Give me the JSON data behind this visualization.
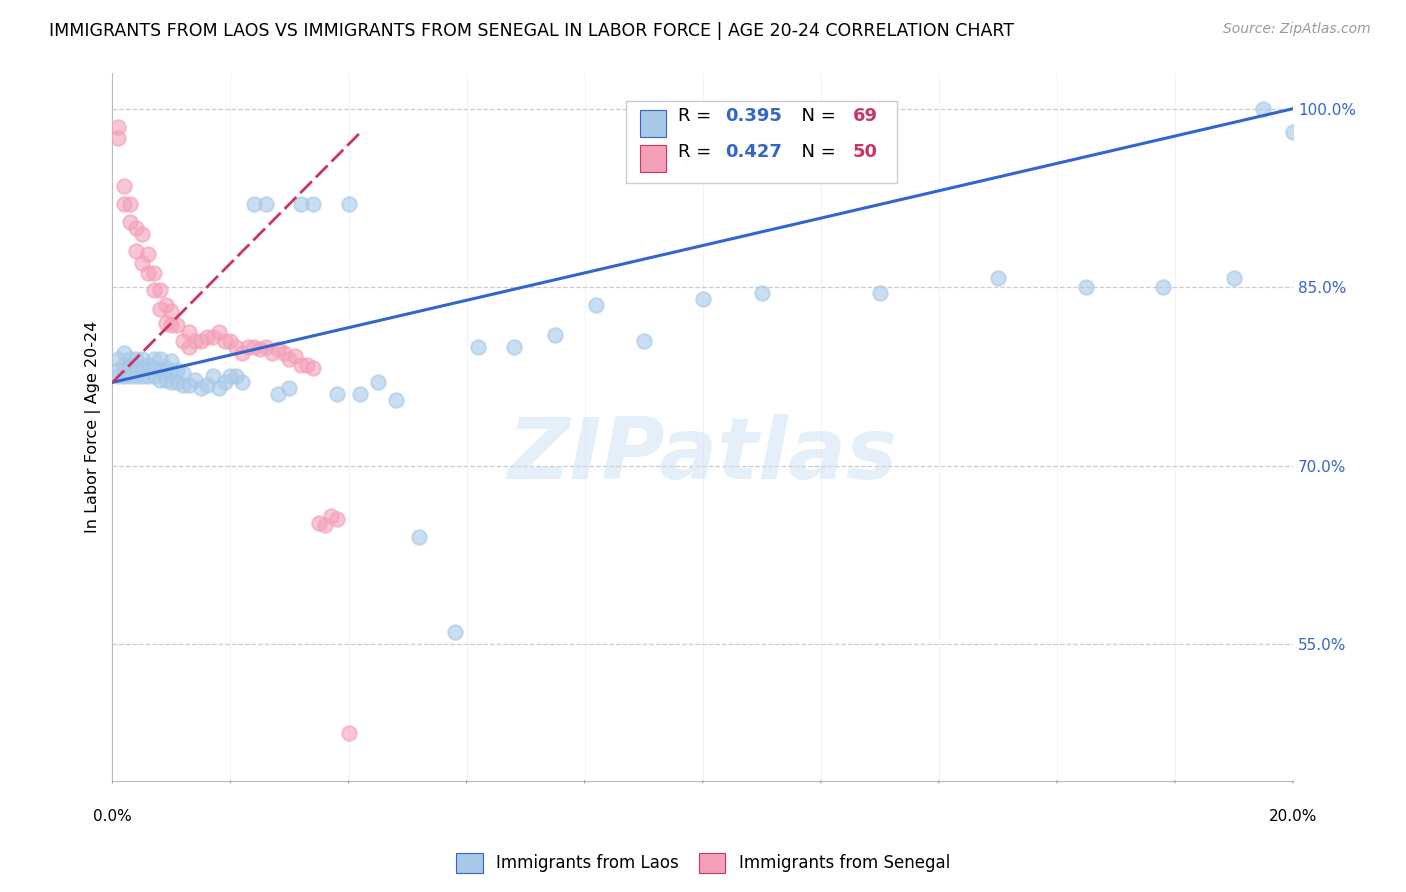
{
  "title": "IMMIGRANTS FROM LAOS VS IMMIGRANTS FROM SENEGAL IN LABOR FORCE | AGE 20-24 CORRELATION CHART",
  "source": "Source: ZipAtlas.com",
  "ylabel": "In Labor Force | Age 20-24",
  "xmin": 0.0,
  "xmax": 0.2,
  "ymin": 0.435,
  "ymax": 1.03,
  "laos_color": "#a8c8e8",
  "senegal_color": "#f4a0b8",
  "laos_line_color": "#3366cc",
  "senegal_line_color": "#cc3366",
  "blue_text_color": "#3366cc",
  "pink_text_color": "#cc3366",
  "legend_label_laos": "Immigrants from Laos",
  "legend_label_senegal": "Immigrants from Senegal",
  "watermark_text": "ZIPatlas",
  "yticks": [
    1.0,
    0.85,
    0.7,
    0.55
  ],
  "ytick_labels": [
    "100.0%",
    "85.0%",
    "70.0%",
    "55.0%"
  ],
  "laos_x": [
    0.001,
    0.001,
    0.001,
    0.002,
    0.002,
    0.002,
    0.003,
    0.003,
    0.003,
    0.004,
    0.004,
    0.004,
    0.005,
    0.005,
    0.005,
    0.006,
    0.006,
    0.007,
    0.007,
    0.007,
    0.008,
    0.008,
    0.008,
    0.009,
    0.009,
    0.01,
    0.01,
    0.01,
    0.011,
    0.011,
    0.012,
    0.012,
    0.013,
    0.014,
    0.015,
    0.016,
    0.017,
    0.018,
    0.019,
    0.02,
    0.021,
    0.022,
    0.024,
    0.026,
    0.028,
    0.03,
    0.032,
    0.034,
    0.038,
    0.04,
    0.042,
    0.045,
    0.048,
    0.052,
    0.058,
    0.062,
    0.068,
    0.075,
    0.082,
    0.09,
    0.1,
    0.11,
    0.13,
    0.15,
    0.165,
    0.178,
    0.19,
    0.195,
    0.2
  ],
  "laos_y": [
    0.775,
    0.78,
    0.79,
    0.775,
    0.785,
    0.795,
    0.775,
    0.785,
    0.79,
    0.775,
    0.78,
    0.79,
    0.775,
    0.782,
    0.79,
    0.775,
    0.785,
    0.775,
    0.782,
    0.79,
    0.772,
    0.78,
    0.79,
    0.772,
    0.782,
    0.77,
    0.778,
    0.788,
    0.77,
    0.78,
    0.768,
    0.778,
    0.768,
    0.772,
    0.765,
    0.768,
    0.775,
    0.765,
    0.77,
    0.775,
    0.775,
    0.77,
    0.92,
    0.92,
    0.76,
    0.765,
    0.92,
    0.92,
    0.76,
    0.92,
    0.76,
    0.77,
    0.755,
    0.64,
    0.56,
    0.8,
    0.8,
    0.81,
    0.835,
    0.805,
    0.84,
    0.845,
    0.845,
    0.858,
    0.85,
    0.85,
    0.858,
    1.0,
    0.98
  ],
  "senegal_x": [
    0.001,
    0.001,
    0.002,
    0.002,
    0.003,
    0.003,
    0.004,
    0.004,
    0.005,
    0.005,
    0.006,
    0.006,
    0.007,
    0.007,
    0.008,
    0.008,
    0.009,
    0.009,
    0.01,
    0.01,
    0.011,
    0.012,
    0.013,
    0.013,
    0.014,
    0.015,
    0.016,
    0.017,
    0.018,
    0.019,
    0.02,
    0.021,
    0.022,
    0.023,
    0.024,
    0.025,
    0.026,
    0.027,
    0.028,
    0.029,
    0.03,
    0.031,
    0.032,
    0.033,
    0.034,
    0.035,
    0.036,
    0.037,
    0.038,
    0.04
  ],
  "senegal_y": [
    0.975,
    0.985,
    0.92,
    0.935,
    0.905,
    0.92,
    0.88,
    0.9,
    0.87,
    0.895,
    0.862,
    0.878,
    0.848,
    0.862,
    0.832,
    0.848,
    0.82,
    0.835,
    0.818,
    0.83,
    0.818,
    0.805,
    0.8,
    0.812,
    0.805,
    0.805,
    0.808,
    0.808,
    0.812,
    0.805,
    0.805,
    0.8,
    0.795,
    0.8,
    0.8,
    0.798,
    0.8,
    0.795,
    0.798,
    0.795,
    0.79,
    0.792,
    0.785,
    0.785,
    0.782,
    0.652,
    0.65,
    0.658,
    0.655,
    0.475
  ]
}
